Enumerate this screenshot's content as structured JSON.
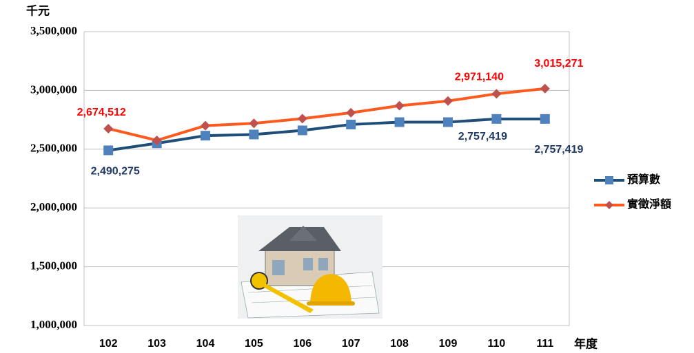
{
  "chart_data": {
    "type": "line",
    "y_unit": "千元",
    "x_label": "年度",
    "categories": [
      "102",
      "103",
      "104",
      "105",
      "106",
      "107",
      "108",
      "109",
      "110",
      "111"
    ],
    "series": [
      {
        "name": "預算數",
        "color": "#1f4e79",
        "marker_color": "#4f81bd",
        "marker": "square",
        "label_color": "#1f3864",
        "values": [
          2490275,
          2550000,
          2615000,
          2625000,
          2660000,
          2710000,
          2730000,
          2730000,
          2757419,
          2757419
        ],
        "value_labels": [
          "2,490,275",
          null,
          null,
          null,
          null,
          null,
          null,
          null,
          "2,757,419",
          "2,757,419"
        ]
      },
      {
        "name": "實徵淨額",
        "color": "#ff5a1e",
        "marker_color": "#c0504d",
        "marker": "diamond",
        "label_color": "#ff0000",
        "values": [
          2674512,
          2575000,
          2700000,
          2720000,
          2760000,
          2810000,
          2870000,
          2910000,
          2971140,
          3015271
        ],
        "value_labels": [
          "2,674,512",
          null,
          null,
          null,
          null,
          null,
          null,
          null,
          "2,971,140",
          "3,015,271"
        ]
      }
    ],
    "ylim": [
      1000000,
      3500000
    ],
    "yticks": [
      {
        "value": 1000000,
        "label": "1,000,000"
      },
      {
        "value": 1500000,
        "label": "1,500,000"
      },
      {
        "value": 2000000,
        "label": "2,000,000"
      },
      {
        "value": 2500000,
        "label": "2,500,000"
      },
      {
        "value": 3000000,
        "label": "3,000,000"
      },
      {
        "value": 3500000,
        "label": "3,500,000"
      }
    ],
    "grid": true,
    "legend": "right"
  }
}
